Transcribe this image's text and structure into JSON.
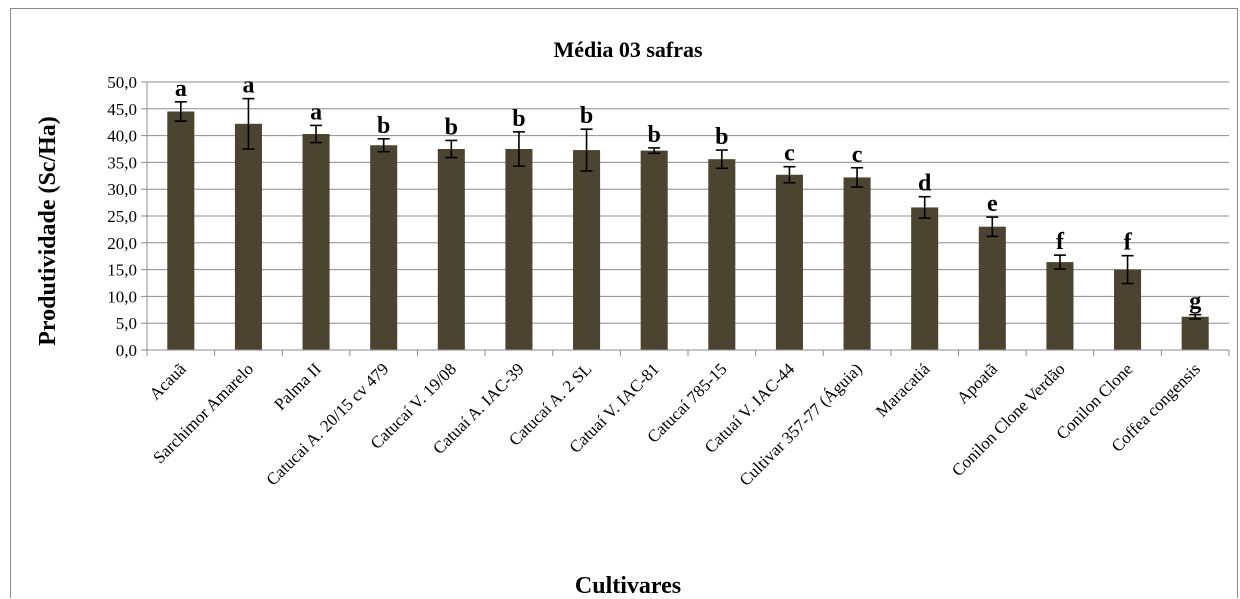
{
  "chart_data": {
    "type": "bar",
    "title": "Média 03 safras",
    "xlabel": "Cultivares",
    "ylabel": "Produtividade (Sc/Ha)",
    "ylim": [
      0,
      50
    ],
    "ytick_step": 5,
    "ytick_labels": [
      "0,0",
      "5,0",
      "10,0",
      "15,0",
      "20,0",
      "25,0",
      "30,0",
      "35,0",
      "40,0",
      "45,0",
      "50,0"
    ],
    "grid": true,
    "legend": "none",
    "bar_color": "#4b4430",
    "categories": [
      "Acauã",
      "Sarchimor Amarelo",
      "Palma II",
      "Catucai A. 20/15 cv 479",
      "Catucaí V. 19/08",
      "Catuaí A. IAC-39",
      "Catucaí A. 2 SL",
      "Catuaí V. IAC-81",
      "Catucaí 785-15",
      "Catuaí V. IAC-44",
      "Cultivar 357-77 (Águia)",
      "Maracatiá",
      "Apoatã",
      "Conilon Clone Verdão",
      "Conilon Clone",
      "Coffea congensis"
    ],
    "values": [
      44.5,
      42.2,
      40.3,
      38.2,
      37.5,
      37.5,
      37.3,
      37.2,
      35.6,
      32.7,
      32.2,
      26.6,
      23.0,
      16.4,
      15.0,
      6.2
    ],
    "error": [
      1.8,
      4.7,
      1.6,
      1.2,
      1.6,
      3.2,
      3.9,
      0.5,
      1.7,
      1.5,
      1.8,
      2.0,
      1.8,
      1.3,
      2.6,
      0.4
    ],
    "significance": [
      "a",
      "a",
      "a",
      "b",
      "b",
      "b",
      "b",
      "b",
      "b",
      "c",
      "c",
      "d",
      "e",
      "f",
      "f",
      "g"
    ]
  }
}
